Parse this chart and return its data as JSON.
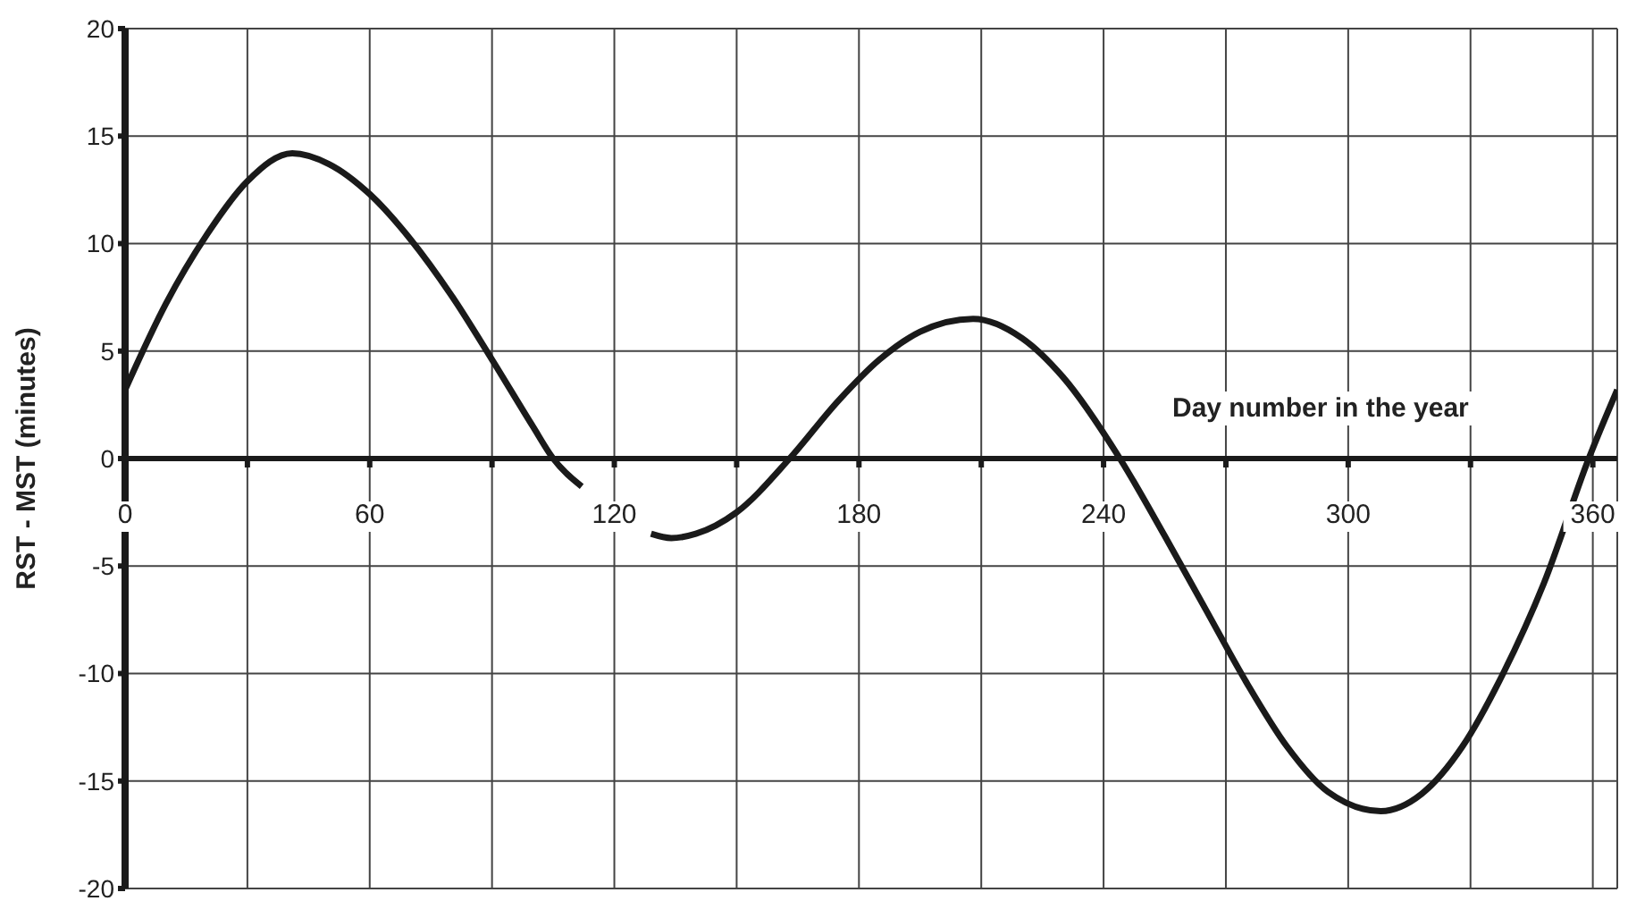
{
  "chart_data": {
    "type": "line",
    "xlabel": "Day number in the year",
    "ylabel": "RST - MST (minutes)",
    "x": [
      0,
      10,
      20,
      30,
      41,
      50,
      60,
      70,
      80,
      90,
      100,
      105,
      112,
      120,
      129,
      134,
      140,
      150,
      163,
      175,
      185,
      195,
      208,
      220,
      230,
      244,
      255,
      265,
      275,
      285,
      295,
      308,
      318,
      328,
      338,
      348,
      359,
      366
    ],
    "series": [
      {
        "color": "#1a1a1a",
        "values": [
          3.2,
          7.2,
          10.4,
          12.9,
          14.2,
          13.7,
          12.3,
          10.2,
          7.6,
          4.6,
          1.5,
          0,
          -1.3,
          null,
          -3.5,
          -3.7,
          -3.5,
          -2.5,
          0,
          2.7,
          4.6,
          5.9,
          6.5,
          5.6,
          3.8,
          0,
          -3.6,
          -7.0,
          -10.4,
          -13.4,
          -15.5,
          -16.4,
          -15.6,
          -13.4,
          -10.0,
          -5.8,
          0,
          3.2
        ]
      }
    ],
    "xlim": [
      0,
      366
    ],
    "xticks": [
      0,
      {
        "value": 30,
        "label": null
      },
      60,
      {
        "value": 90,
        "label": null
      },
      120,
      {
        "value": 150,
        "label": null
      },
      180,
      {
        "value": 210,
        "label": null
      },
      240,
      {
        "value": 270,
        "label": null
      },
      300,
      {
        "value": 330,
        "label": null
      },
      360
    ],
    "ylim": [
      -20,
      20
    ],
    "yticks": [
      -20,
      -15,
      -10,
      -5,
      0,
      5,
      10,
      15,
      20
    ],
    "grid": true
  }
}
